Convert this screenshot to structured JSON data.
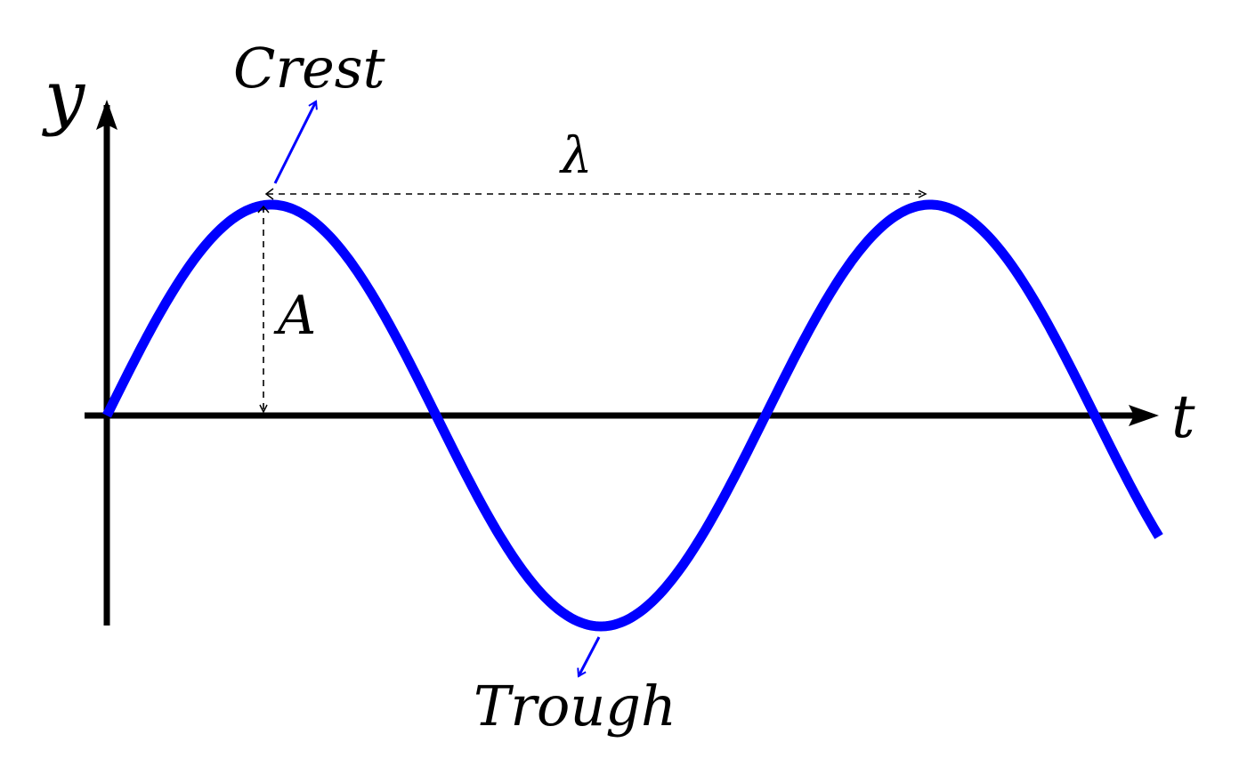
{
  "labels": {
    "y_axis": "y",
    "t_axis": "t",
    "crest": "Crest",
    "trough": "Trough",
    "wavelength": "λ",
    "amplitude": "A"
  },
  "colors": {
    "wave": "#0000ff",
    "axis": "#000000",
    "guide": "#000000",
    "background": "#ffffff"
  },
  "wave": {
    "function": "sine",
    "periods_shown": 1.6
  }
}
